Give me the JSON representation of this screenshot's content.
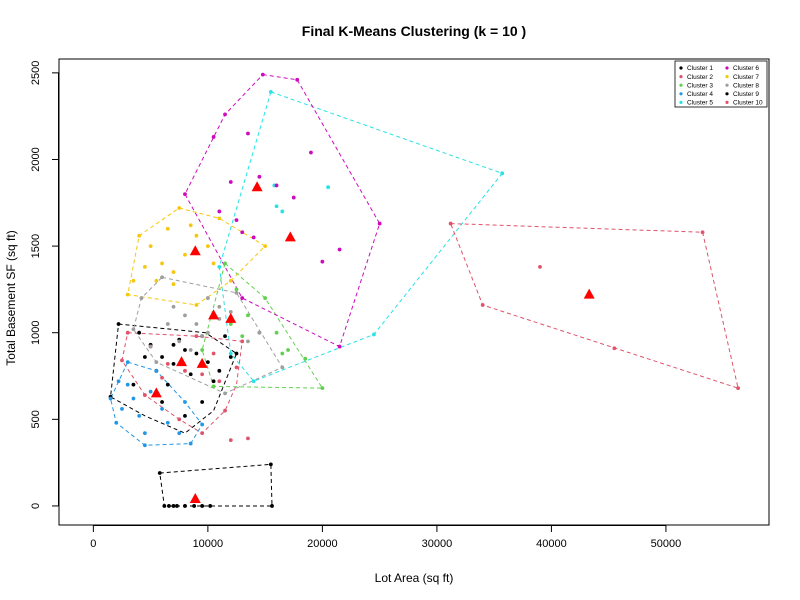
{
  "chart_data": {
    "type": "scatter",
    "title": "Final K-Means Clustering (k = 10 )",
    "xlabel": "Lot Area (sq ft)",
    "ylabel": "Total Basement SF (sq ft)",
    "xlim": [
      -3000,
      59000
    ],
    "ylim": [
      -110,
      2580
    ],
    "x_ticks": [
      0,
      10000,
      20000,
      30000,
      40000,
      50000
    ],
    "y_ticks": [
      0,
      500,
      1000,
      1500,
      2000,
      2500
    ],
    "grid": false,
    "legend_position": "top-right",
    "series": [
      {
        "name": "Cluster 1",
        "color": "#000000",
        "hull": [
          [
            2200,
            1050
          ],
          [
            9800,
            1000
          ],
          [
            12500,
            880
          ],
          [
            10500,
            550
          ],
          [
            8000,
            420
          ],
          [
            4500,
            520
          ],
          [
            1500,
            630
          ]
        ],
        "points": [
          [
            2200,
            1050
          ],
          [
            4000,
            1000
          ],
          [
            5000,
            930
          ],
          [
            6000,
            860
          ],
          [
            7000,
            820
          ],
          [
            8000,
            900
          ],
          [
            9000,
            880
          ],
          [
            10000,
            830
          ],
          [
            11000,
            780
          ],
          [
            12000,
            860
          ],
          [
            9500,
            980
          ],
          [
            7500,
            960
          ],
          [
            5500,
            780
          ],
          [
            4500,
            860
          ],
          [
            3500,
            700
          ],
          [
            6500,
            700
          ],
          [
            8500,
            760
          ],
          [
            10500,
            720
          ],
          [
            9500,
            600
          ],
          [
            8000,
            520
          ],
          [
            1500,
            630
          ],
          [
            12500,
            880
          ],
          [
            6000,
            600
          ],
          [
            7000,
            930
          ],
          [
            11500,
            980
          ]
        ]
      },
      {
        "name": "Cluster 2",
        "color": "#DF536B",
        "hull": [
          [
            3000,
            1000
          ],
          [
            9000,
            980
          ],
          [
            13000,
            950
          ],
          [
            12500,
            700
          ],
          [
            11500,
            550
          ],
          [
            9500,
            420
          ],
          [
            7500,
            500
          ],
          [
            4500,
            640
          ],
          [
            2500,
            840
          ]
        ],
        "points": [
          [
            3000,
            1000
          ],
          [
            5000,
            920
          ],
          [
            6500,
            820
          ],
          [
            8000,
            780
          ],
          [
            9500,
            760
          ],
          [
            11000,
            720
          ],
          [
            12500,
            800
          ],
          [
            11500,
            550
          ],
          [
            9500,
            420
          ],
          [
            7500,
            500
          ],
          [
            4500,
            640
          ],
          [
            2500,
            840
          ],
          [
            9000,
            980
          ],
          [
            13000,
            950
          ],
          [
            10500,
            880
          ],
          [
            6000,
            740
          ],
          [
            12000,
            380
          ],
          [
            13500,
            390
          ]
        ]
      },
      {
        "name": "Cluster 3",
        "color": "#61D04F",
        "hull": [
          [
            11500,
            1400
          ],
          [
            15000,
            1200
          ],
          [
            20000,
            680
          ],
          [
            10500,
            690
          ],
          [
            9500,
            900
          ]
        ],
        "points": [
          [
            11500,
            1400
          ],
          [
            12500,
            1250
          ],
          [
            13500,
            1100
          ],
          [
            14500,
            1000
          ],
          [
            15000,
            1200
          ],
          [
            16000,
            1000
          ],
          [
            17000,
            900
          ],
          [
            18500,
            850
          ],
          [
            20000,
            680
          ],
          [
            10500,
            690
          ],
          [
            9500,
            900
          ],
          [
            12000,
            1050
          ],
          [
            13000,
            980
          ],
          [
            16500,
            880
          ]
        ]
      },
      {
        "name": "Cluster 4",
        "color": "#2297E6",
        "hull": [
          [
            3000,
            830
          ],
          [
            5500,
            780
          ],
          [
            8000,
            600
          ],
          [
            9500,
            470
          ],
          [
            8500,
            360
          ],
          [
            4500,
            350
          ],
          [
            2000,
            480
          ],
          [
            1500,
            620
          ]
        ],
        "points": [
          [
            2000,
            480
          ],
          [
            2500,
            560
          ],
          [
            3000,
            700
          ],
          [
            3500,
            620
          ],
          [
            4000,
            520
          ],
          [
            4500,
            420
          ],
          [
            5000,
            660
          ],
          [
            5500,
            780
          ],
          [
            6000,
            560
          ],
          [
            6500,
            480
          ],
          [
            7500,
            420
          ],
          [
            8500,
            360
          ],
          [
            4500,
            350
          ],
          [
            3000,
            830
          ],
          [
            2200,
            720
          ],
          [
            1500,
            620
          ],
          [
            8000,
            600
          ],
          [
            9500,
            470
          ]
        ]
      },
      {
        "name": "Cluster 5",
        "color": "#28E2E5",
        "hull": [
          [
            15500,
            2390
          ],
          [
            35700,
            1920
          ],
          [
            24500,
            990
          ],
          [
            14000,
            720
          ],
          [
            12000,
            880
          ],
          [
            11000,
            1380
          ]
        ],
        "points": [
          [
            15500,
            2390
          ],
          [
            35700,
            1920
          ],
          [
            24500,
            990
          ],
          [
            14000,
            720
          ],
          [
            12000,
            880
          ],
          [
            11000,
            1380
          ],
          [
            16000,
            1730
          ],
          [
            16500,
            1700
          ],
          [
            20500,
            1840
          ],
          [
            15800,
            1850
          ]
        ]
      },
      {
        "name": "Cluster 6",
        "color": "#CD0BBC",
        "hull": [
          [
            14800,
            2490
          ],
          [
            17800,
            2460
          ],
          [
            25000,
            1630
          ],
          [
            21500,
            920
          ],
          [
            13000,
            1200
          ],
          [
            8000,
            1800
          ],
          [
            11500,
            2260
          ]
        ],
        "points": [
          [
            14800,
            2490
          ],
          [
            17800,
            2460
          ],
          [
            25000,
            1630
          ],
          [
            21500,
            920
          ],
          [
            13000,
            1200
          ],
          [
            8000,
            1800
          ],
          [
            11500,
            2260
          ],
          [
            10500,
            2130
          ],
          [
            12000,
            1870
          ],
          [
            13500,
            2150
          ],
          [
            14500,
            1900
          ],
          [
            16000,
            1850
          ],
          [
            17500,
            1780
          ],
          [
            19000,
            2040
          ],
          [
            20000,
            1410
          ],
          [
            21500,
            1480
          ],
          [
            11000,
            1700
          ],
          [
            12500,
            1650
          ],
          [
            13000,
            1580
          ],
          [
            14000,
            1550
          ]
        ]
      },
      {
        "name": "Cluster 7",
        "color": "#F5C710",
        "hull": [
          [
            7500,
            1720
          ],
          [
            11000,
            1660
          ],
          [
            15000,
            1500
          ],
          [
            12000,
            1300
          ],
          [
            9000,
            1160
          ],
          [
            3000,
            1220
          ],
          [
            4000,
            1560
          ]
        ],
        "points": [
          [
            7500,
            1720
          ],
          [
            11000,
            1660
          ],
          [
            15000,
            1500
          ],
          [
            12000,
            1300
          ],
          [
            9000,
            1160
          ],
          [
            3000,
            1220
          ],
          [
            4000,
            1560
          ],
          [
            5000,
            1500
          ],
          [
            6000,
            1400
          ],
          [
            7000,
            1350
          ],
          [
            8000,
            1450
          ],
          [
            9000,
            1560
          ],
          [
            10000,
            1500
          ],
          [
            5500,
            1300
          ],
          [
            4500,
            1380
          ],
          [
            8500,
            1620
          ],
          [
            6500,
            1600
          ],
          [
            10500,
            1400
          ],
          [
            7000,
            1280
          ],
          [
            3500,
            1300
          ]
        ]
      },
      {
        "name": "Cluster 8",
        "color": "#9E9E9E",
        "hull": [
          [
            6000,
            1320
          ],
          [
            12500,
            1230
          ],
          [
            16500,
            800
          ],
          [
            11500,
            650
          ],
          [
            5500,
            830
          ],
          [
            3500,
            1020
          ],
          [
            4200,
            1200
          ]
        ],
        "points": [
          [
            6000,
            1320
          ],
          [
            12500,
            1230
          ],
          [
            16500,
            800
          ],
          [
            11500,
            650
          ],
          [
            5500,
            830
          ],
          [
            3500,
            1020
          ],
          [
            4200,
            1200
          ],
          [
            7000,
            1150
          ],
          [
            8000,
            1100
          ],
          [
            9000,
            1050
          ],
          [
            10000,
            1000
          ],
          [
            11000,
            1080
          ],
          [
            12000,
            1120
          ],
          [
            7500,
            950
          ],
          [
            8500,
            900
          ],
          [
            9500,
            980
          ],
          [
            6500,
            1050
          ],
          [
            5000,
            920
          ],
          [
            13500,
            950
          ],
          [
            14500,
            1000
          ],
          [
            10000,
            1200
          ],
          [
            11000,
            1150
          ]
        ]
      },
      {
        "name": "Cluster 9",
        "color": "#000000",
        "hull": [
          [
            5800,
            190
          ],
          [
            15500,
            240
          ],
          [
            15600,
            0
          ],
          [
            6200,
            0
          ]
        ],
        "points": [
          [
            5800,
            190
          ],
          [
            15500,
            240
          ],
          [
            15600,
            0
          ],
          [
            6200,
            0
          ],
          [
            6600,
            0
          ],
          [
            7000,
            0
          ],
          [
            7300,
            0
          ],
          [
            8000,
            0
          ],
          [
            8800,
            0
          ],
          [
            9500,
            0
          ],
          [
            10200,
            0
          ]
        ]
      },
      {
        "name": "Cluster 10",
        "color": "#DF536B",
        "hull": [
          [
            31200,
            1630
          ],
          [
            53200,
            1580
          ],
          [
            56300,
            680
          ],
          [
            34000,
            1160
          ]
        ],
        "points": [
          [
            31200,
            1630
          ],
          [
            53200,
            1580
          ],
          [
            56300,
            680
          ],
          [
            34000,
            1160
          ],
          [
            39000,
            1380
          ],
          [
            45500,
            910
          ]
        ]
      }
    ],
    "centroids": [
      [
        7700,
        830
      ],
      [
        9500,
        820
      ],
      [
        12000,
        1080
      ],
      [
        5500,
        650
      ],
      [
        17200,
        1550
      ],
      [
        14300,
        1840
      ],
      [
        8900,
        1470
      ],
      [
        10500,
        1100
      ],
      [
        8900,
        40
      ],
      [
        43300,
        1220
      ]
    ]
  }
}
